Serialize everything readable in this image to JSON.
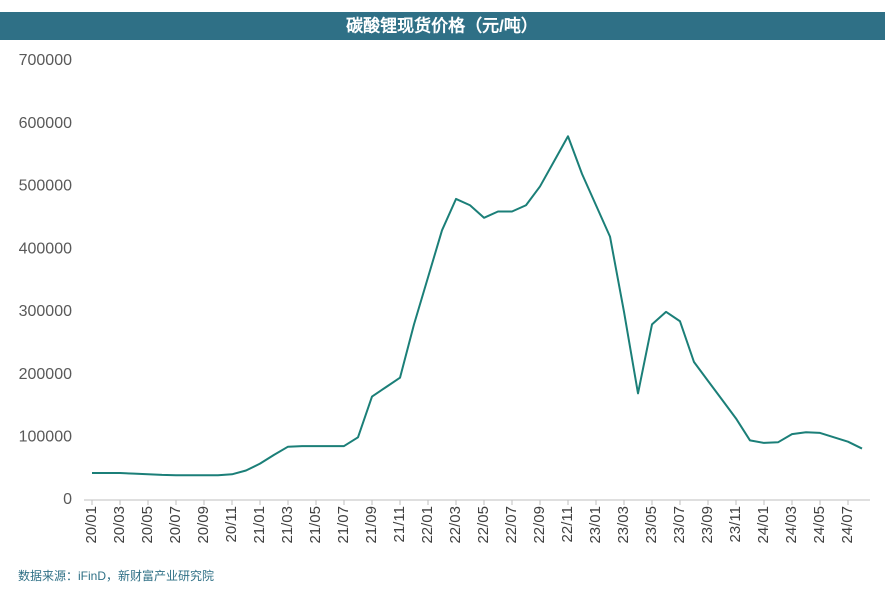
{
  "chart_data": {
    "type": "line",
    "title": "碳酸锂现货价格（元/吨）",
    "source": "数据来源：iFinD，新财富产业研究院",
    "categories": [
      "20/01",
      null,
      "20/03",
      null,
      "20/05",
      null,
      "20/07",
      null,
      "20/09",
      null,
      "20/11",
      null,
      "21/01",
      null,
      "21/03",
      null,
      "21/05",
      null,
      "21/07",
      null,
      "21/09",
      null,
      "21/11",
      null,
      "22/01",
      null,
      "22/03",
      null,
      "22/05",
      null,
      "22/07",
      null,
      "22/09",
      null,
      "22/11",
      null,
      "23/01",
      null,
      "23/03",
      null,
      "23/05",
      null,
      "23/07",
      null,
      "23/09",
      null,
      "23/11",
      null,
      "24/01",
      null,
      "24/03",
      null,
      "24/05",
      null,
      "24/07",
      null
    ],
    "values": [
      43000,
      43000,
      43000,
      42000,
      41000,
      40000,
      39500,
      39500,
      39500,
      39500,
      41000,
      47000,
      58000,
      72000,
      85000,
      86000,
      86000,
      86000,
      86000,
      100000,
      165000,
      180000,
      195000,
      280000,
      355000,
      430000,
      480000,
      470000,
      450000,
      460000,
      460000,
      470000,
      500000,
      540000,
      580000,
      520000,
      470000,
      420000,
      300000,
      170000,
      280000,
      300000,
      285000,
      220000,
      190000,
      160000,
      130000,
      95000,
      91000,
      92000,
      105000,
      108000,
      107000,
      100000,
      93000,
      82000
    ],
    "color": "#1b7f78",
    "ylim": [
      0,
      700000
    ],
    "yticks": [
      0,
      100000,
      200000,
      300000,
      400000,
      500000,
      600000,
      700000
    ],
    "grid": false
  }
}
